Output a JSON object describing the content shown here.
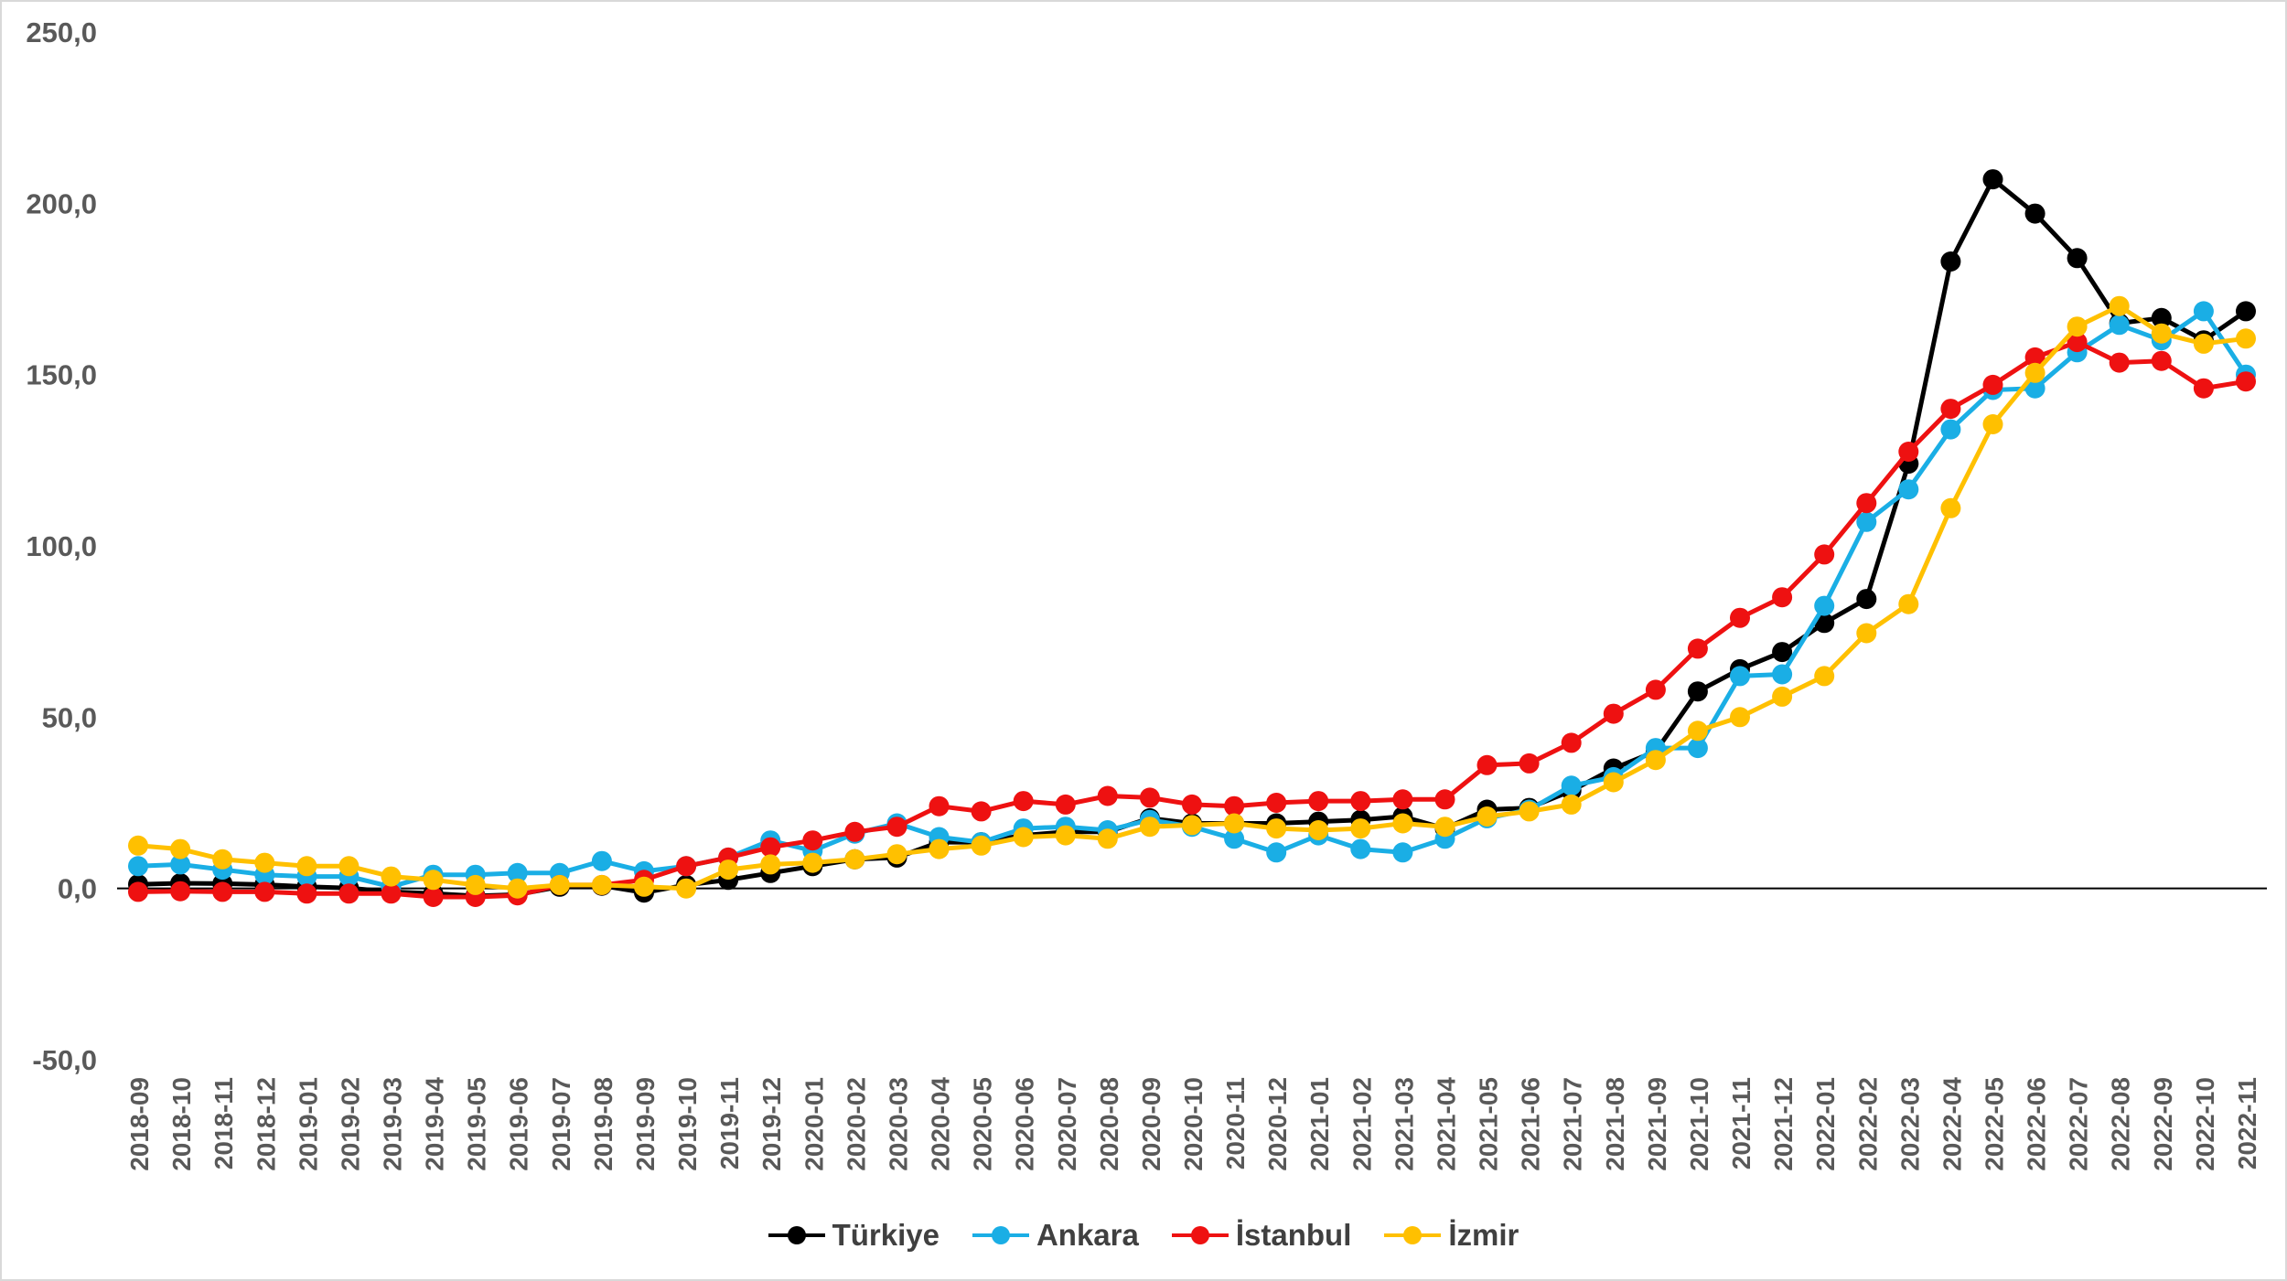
{
  "chart_data": {
    "type": "line",
    "title": "",
    "xlabel": "",
    "ylabel": "",
    "ylim": [
      -50,
      250
    ],
    "y_ticks": [
      -50,
      0,
      50,
      100,
      150,
      200,
      250
    ],
    "y_tick_labels": [
      "-50,0",
      "0,0",
      "50,0",
      "100,0",
      "150,0",
      "200,0",
      "250,0"
    ],
    "grid": false,
    "legend_position": "bottom",
    "categories": [
      "2018-09",
      "2018-10",
      "2018-11",
      "2018-12",
      "2019-01",
      "2019-02",
      "2019-03",
      "2019-04",
      "2019-05",
      "2019-06",
      "2019-07",
      "2019-08",
      "2019-09",
      "2019-10",
      "2019-11",
      "2019-12",
      "2020-01",
      "2020-02",
      "2020-03",
      "2020-04",
      "2020-05",
      "2020-06",
      "2020-07",
      "2020-08",
      "2020-09",
      "2020-10",
      "2020-11",
      "2020-12",
      "2021-01",
      "2021-02",
      "2021-03",
      "2021-04",
      "2021-05",
      "2021-06",
      "2021-07",
      "2021-08",
      "2021-09",
      "2021-10",
      "2021-11",
      "2021-12",
      "2022-01",
      "2022-02",
      "2022-03",
      "2022-04",
      "2022-05",
      "2022-06",
      "2022-07",
      "2022-08",
      "2022-09",
      "2022-10",
      "2022-11"
    ],
    "series": [
      {
        "name": "Türkiye",
        "color": "#000000",
        "values": [
          1.2,
          1.5,
          1.4,
          1.1,
          0.5,
          0.1,
          -1.0,
          -1.5,
          -2.2,
          -1.8,
          0.5,
          0.8,
          -1.2,
          1.0,
          2.5,
          4.5,
          6.5,
          8.5,
          9.0,
          13.5,
          13.5,
          15.5,
          16.5,
          16.5,
          20.5,
          19.0,
          19.0,
          19.0,
          19.5,
          20.0,
          21.0,
          17.5,
          23.0,
          23.5,
          28.5,
          35.0,
          40.0,
          57.5,
          64.0,
          69.0,
          77.5,
          84.5,
          124.0,
          183.0,
          207.0,
          197.0,
          184.0,
          165.0,
          166.5,
          160.0,
          168.5
        ]
      },
      {
        "name": "Ankara",
        "color": "#1AAEE5",
        "values": [
          6.5,
          7.0,
          5.5,
          4.0,
          3.5,
          3.5,
          0.5,
          4.0,
          4.0,
          4.5,
          4.5,
          8.0,
          5.0,
          6.5,
          9.0,
          14.0,
          11.0,
          16.0,
          19.0,
          15.0,
          13.5,
          17.5,
          18.0,
          17.0,
          20.0,
          18.0,
          14.5,
          10.5,
          15.5,
          11.5,
          10.5,
          14.5,
          20.5,
          23.0,
          30.0,
          32.5,
          41.0,
          41.0,
          62.0,
          62.5,
          82.5,
          107.0,
          116.5,
          134.0,
          145.5,
          146.0,
          156.5,
          164.5,
          160.0,
          168.5,
          150.0
        ]
      },
      {
        "name": "İstanbul",
        "color": "#EE1111",
        "values": [
          -1.0,
          -0.8,
          -1.0,
          -1.0,
          -1.5,
          -1.5,
          -1.5,
          -2.5,
          -2.5,
          -2.0,
          1.0,
          1.0,
          2.5,
          6.5,
          9.0,
          12.0,
          14.0,
          16.5,
          18.0,
          24.0,
          22.5,
          25.5,
          24.5,
          27.0,
          26.5,
          24.5,
          24.0,
          25.0,
          25.5,
          25.5,
          26.0,
          26.0,
          36.0,
          36.5,
          42.5,
          51.0,
          58.0,
          70.0,
          79.0,
          85.0,
          97.5,
          112.5,
          127.5,
          140.0,
          147.0,
          155.0,
          159.5,
          153.5,
          154.0,
          146.0,
          148.0
        ]
      },
      {
        "name": "İzmir",
        "color": "#FFC000",
        "values": [
          12.5,
          11.5,
          8.5,
          7.5,
          6.5,
          6.5,
          3.5,
          2.5,
          1.0,
          0.0,
          1.0,
          1.0,
          0.5,
          0.0,
          5.5,
          7.0,
          7.5,
          8.5,
          10.0,
          11.5,
          12.5,
          15.0,
          15.5,
          14.5,
          18.0,
          18.5,
          19.0,
          17.5,
          17.0,
          17.5,
          19.0,
          18.0,
          21.0,
          22.5,
          24.5,
          31.0,
          37.5,
          46.0,
          50.0,
          56.0,
          62.0,
          74.5,
          83.0,
          111.0,
          135.5,
          150.5,
          164.0,
          170.0,
          162.0,
          159.0,
          160.5
        ]
      }
    ]
  }
}
